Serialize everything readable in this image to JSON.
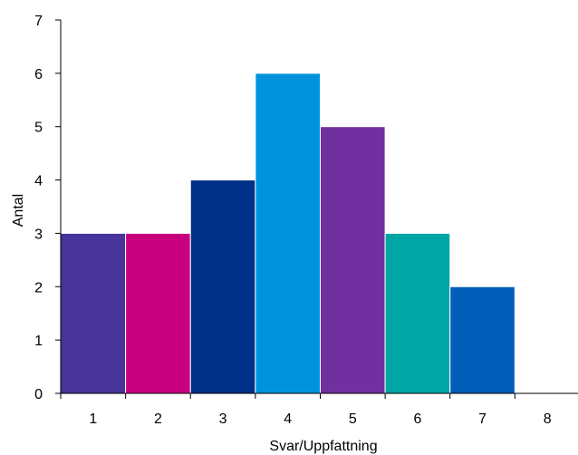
{
  "chart_data": {
    "type": "bar",
    "categories": [
      "1",
      "2",
      "3",
      "4",
      "5",
      "6",
      "7",
      "8"
    ],
    "values": [
      3,
      3,
      4,
      6,
      5,
      3,
      2,
      0
    ],
    "colors": [
      "#46349a",
      "#c8007f",
      "#003087",
      "#0093dd",
      "#7030a0",
      "#00a5a5",
      "#005eb8",
      "#ffffff"
    ],
    "title": "",
    "xlabel": "Svar/Uppfattning",
    "ylabel": "Antal",
    "ylim": [
      0,
      7
    ],
    "yticks": [
      "0",
      "1",
      "2",
      "3",
      "4",
      "5",
      "6",
      "7"
    ],
    "grid": false,
    "legend": "none"
  }
}
